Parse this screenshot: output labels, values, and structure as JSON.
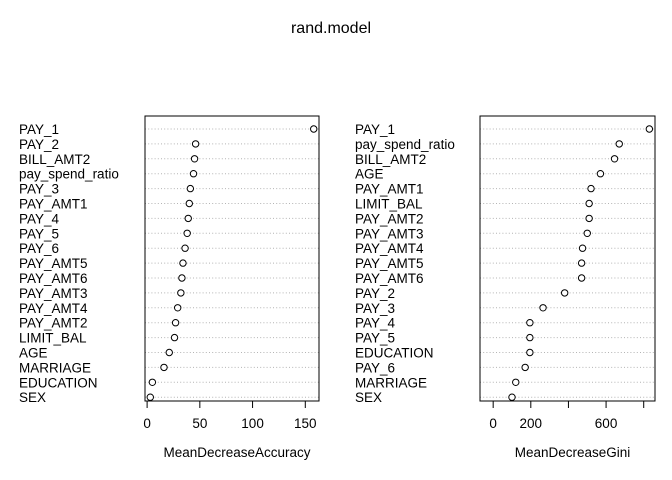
{
  "chart_data": {
    "title": "rand.model",
    "type": "scatter",
    "panels": [
      {
        "xlabel": "MeanDecreaseAccuracy",
        "xlim": [
          -2,
          163
        ],
        "xticks": [
          0,
          50,
          100,
          150
        ],
        "grid": true,
        "points": [
          {
            "label": "PAY_1",
            "value": 158
          },
          {
            "label": "PAY_2",
            "value": 46
          },
          {
            "label": "BILL_AMT2",
            "value": 45
          },
          {
            "label": "pay_spend_ratio",
            "value": 44
          },
          {
            "label": "PAY_3",
            "value": 41
          },
          {
            "label": "PAY_AMT1",
            "value": 40
          },
          {
            "label": "PAY_4",
            "value": 39
          },
          {
            "label": "PAY_5",
            "value": 38
          },
          {
            "label": "PAY_6",
            "value": 36
          },
          {
            "label": "PAY_AMT5",
            "value": 34
          },
          {
            "label": "PAY_AMT6",
            "value": 33
          },
          {
            "label": "PAY_AMT3",
            "value": 32
          },
          {
            "label": "PAY_AMT4",
            "value": 29
          },
          {
            "label": "PAY_AMT2",
            "value": 27
          },
          {
            "label": "LIMIT_BAL",
            "value": 26
          },
          {
            "label": "AGE",
            "value": 21
          },
          {
            "label": "MARRIAGE",
            "value": 16
          },
          {
            "label": "EDUCATION",
            "value": 5
          },
          {
            "label": "SEX",
            "value": 3
          }
        ]
      },
      {
        "xlabel": "MeanDecreaseGini",
        "xlim": [
          -70,
          860
        ],
        "xticks": [
          0,
          200,
          400,
          600,
          800
        ],
        "xtick_labels": [
          "0",
          "200",
          "",
          "600",
          ""
        ],
        "grid": true,
        "points": [
          {
            "label": "PAY_1",
            "value": 830
          },
          {
            "label": "pay_spend_ratio",
            "value": 670
          },
          {
            "label": "BILL_AMT2",
            "value": 645
          },
          {
            "label": "AGE",
            "value": 570
          },
          {
            "label": "PAY_AMT1",
            "value": 520
          },
          {
            "label": "LIMIT_BAL",
            "value": 510
          },
          {
            "label": "PAY_AMT2",
            "value": 510
          },
          {
            "label": "PAY_AMT3",
            "value": 500
          },
          {
            "label": "PAY_AMT4",
            "value": 475
          },
          {
            "label": "PAY_AMT5",
            "value": 470
          },
          {
            "label": "PAY_AMT6",
            "value": 470
          },
          {
            "label": "PAY_2",
            "value": 380
          },
          {
            "label": "PAY_3",
            "value": 265
          },
          {
            "label": "PAY_4",
            "value": 195
          },
          {
            "label": "PAY_5",
            "value": 195
          },
          {
            "label": "EDUCATION",
            "value": 195
          },
          {
            "label": "PAY_6",
            "value": 170
          },
          {
            "label": "MARRIAGE",
            "value": 120
          },
          {
            "label": "SEX",
            "value": 100
          }
        ]
      }
    ]
  }
}
